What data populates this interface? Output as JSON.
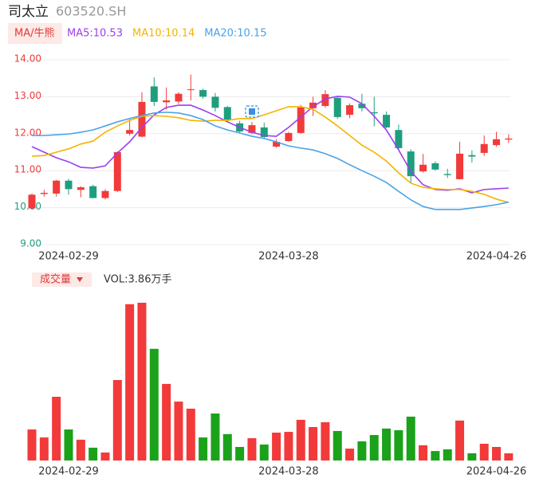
{
  "header": {
    "name": "司太立",
    "code": "603520.SH"
  },
  "chart_data": [
    {
      "type": "candlestick",
      "button": "MA/牛熊",
      "categories": [
        "2024-02-29",
        null,
        null,
        null,
        null,
        null,
        null,
        null,
        null,
        null,
        null,
        null,
        null,
        null,
        null,
        null,
        null,
        null,
        "2024-03-28",
        null,
        null,
        null,
        null,
        null,
        null,
        null,
        null,
        null,
        null,
        null,
        null,
        null,
        null,
        null,
        null,
        "2024-04-26",
        null,
        null,
        null,
        null
      ],
      "open": [
        9.98,
        10.37,
        10.38,
        10.73,
        10.48,
        10.58,
        10.26,
        10.45,
        12.0,
        11.92,
        13.28,
        12.85,
        12.87,
        13.18,
        13.18,
        13.0,
        12.72,
        12.28,
        12.02,
        12.17,
        11.65,
        11.8,
        12.02,
        12.69,
        12.75,
        12.97,
        12.51,
        12.81,
        12.58,
        12.51,
        12.1,
        11.52,
        10.98,
        11.2,
        10.91,
        10.77,
        11.42,
        11.48,
        11.69,
        11.84
      ],
      "high": [
        10.38,
        10.48,
        10.75,
        10.78,
        10.58,
        10.62,
        10.5,
        11.52,
        12.4,
        13.12,
        13.52,
        13.25,
        13.12,
        13.6,
        13.22,
        13.1,
        12.75,
        12.35,
        12.32,
        12.3,
        11.85,
        12.05,
        12.78,
        13.0,
        13.18,
        13.02,
        12.82,
        13.08,
        13.0,
        12.6,
        12.25,
        11.58,
        11.45,
        11.25,
        11.05,
        11.78,
        11.55,
        11.95,
        12.05,
        11.98
      ],
      "low": [
        9.97,
        10.3,
        10.3,
        10.35,
        10.28,
        10.25,
        10.22,
        10.42,
        11.95,
        11.9,
        12.75,
        12.65,
        12.8,
        12.9,
        12.95,
        12.6,
        12.3,
        12.03,
        11.98,
        11.88,
        11.62,
        11.78,
        12.0,
        12.48,
        12.7,
        12.4,
        12.42,
        12.6,
        12.2,
        12.15,
        11.55,
        10.65,
        10.95,
        11.0,
        10.8,
        10.76,
        11.22,
        11.4,
        11.65,
        11.75
      ],
      "close": [
        10.35,
        10.4,
        10.73,
        10.5,
        10.55,
        10.26,
        10.45,
        11.5,
        12.1,
        12.86,
        12.86,
        12.9,
        13.08,
        13.2,
        13.0,
        12.7,
        12.38,
        12.06,
        12.23,
        11.91,
        11.78,
        12.02,
        12.71,
        12.84,
        13.07,
        12.45,
        12.77,
        12.69,
        12.55,
        12.17,
        11.61,
        10.85,
        11.16,
        11.03,
        10.88,
        11.46,
        11.38,
        11.72,
        11.85,
        11.87
      ],
      "up_color": "#f23a3a",
      "down_color": "#1f9e7e",
      "series": [
        {
          "name": "MA5:10.53",
          "color": "#9b3ff0",
          "values": [
            11.65,
            11.5,
            11.35,
            11.24,
            11.09,
            11.07,
            11.13,
            11.48,
            11.78,
            12.17,
            12.51,
            12.71,
            12.77,
            12.77,
            12.64,
            12.49,
            12.32,
            12.17,
            12.04,
            11.95,
            11.93,
            12.17,
            12.45,
            12.73,
            12.94,
            13.01,
            12.99,
            12.81,
            12.47,
            12.1,
            11.56,
            10.98,
            10.62,
            10.49,
            10.47,
            10.51,
            10.4,
            10.49,
            10.51,
            10.53
          ]
        },
        {
          "name": "MA10:10.14",
          "color": "#f5b400",
          "values": [
            11.39,
            11.41,
            11.5,
            11.59,
            11.72,
            11.8,
            12.04,
            12.21,
            12.36,
            12.47,
            12.49,
            12.47,
            12.43,
            12.36,
            12.34,
            12.36,
            12.36,
            12.41,
            12.41,
            12.51,
            12.62,
            12.73,
            12.73,
            12.66,
            12.45,
            12.21,
            11.95,
            11.69,
            11.5,
            11.26,
            10.94,
            10.66,
            10.55,
            10.51,
            10.49,
            10.49,
            10.44,
            10.36,
            10.23,
            10.14
          ]
        },
        {
          "name": "MA20:10.15",
          "color": "#4aa3e8",
          "values": [
            11.95,
            11.95,
            11.97,
            11.99,
            12.04,
            12.1,
            12.21,
            12.32,
            12.41,
            12.49,
            12.56,
            12.58,
            12.56,
            12.49,
            12.38,
            12.21,
            12.1,
            12.02,
            11.93,
            11.87,
            11.78,
            11.67,
            11.61,
            11.56,
            11.46,
            11.33,
            11.16,
            11.0,
            10.85,
            10.68,
            10.44,
            10.21,
            10.03,
            9.95,
            9.95,
            9.95,
            9.99,
            10.03,
            10.08,
            10.15
          ]
        }
      ],
      "ylim": [
        9,
        14
      ],
      "yticks": [
        {
          "value": 14,
          "label": "14.00"
        },
        {
          "value": 13,
          "label": "13.00"
        },
        {
          "value": 12,
          "label": "12.00"
        },
        {
          "value": 11,
          "label": "11.00"
        },
        {
          "value": 10,
          "label": "10.00"
        },
        {
          "value": 9,
          "label": "9.00"
        }
      ],
      "ytick_colors": [
        "#f23a3a",
        "#f23a3a",
        "#f23a3a",
        "#f23a3a",
        "#1f9e7e",
        "#1f9e7e"
      ],
      "grid": true
    },
    {
      "type": "bar",
      "title": "成交量",
      "label": "VOL:3.86万手",
      "categories": [
        "2024-02-29",
        null,
        null,
        null,
        null,
        null,
        null,
        null,
        null,
        null,
        null,
        null,
        null,
        null,
        null,
        null,
        null,
        null,
        "2024-03-28",
        null,
        null,
        null,
        null,
        null,
        null,
        null,
        null,
        null,
        null,
        null,
        null,
        null,
        null,
        null,
        null,
        "2024-04-26",
        null,
        null,
        null,
        null
      ],
      "values": [
        16.7,
        12.4,
        34.3,
        16.7,
        11.2,
        6.9,
        4.3,
        43.3,
        84.1,
        84.9,
        60.1,
        41.2,
        31.7,
        27.9,
        12.4,
        25.3,
        14.2,
        7.3,
        12.0,
        8.6,
        15.0,
        15.4,
        21.9,
        18.0,
        20.6,
        15.9,
        6.4,
        10.3,
        13.7,
        17.2,
        16.3,
        23.6,
        8.2,
        5.1,
        6.0,
        21.5,
        3.9,
        9.0,
        7.3,
        3.86
      ],
      "up_color": "#f23a3a",
      "down_color": "#1ba21b",
      "ylim": [
        0,
        86
      ]
    }
  ]
}
